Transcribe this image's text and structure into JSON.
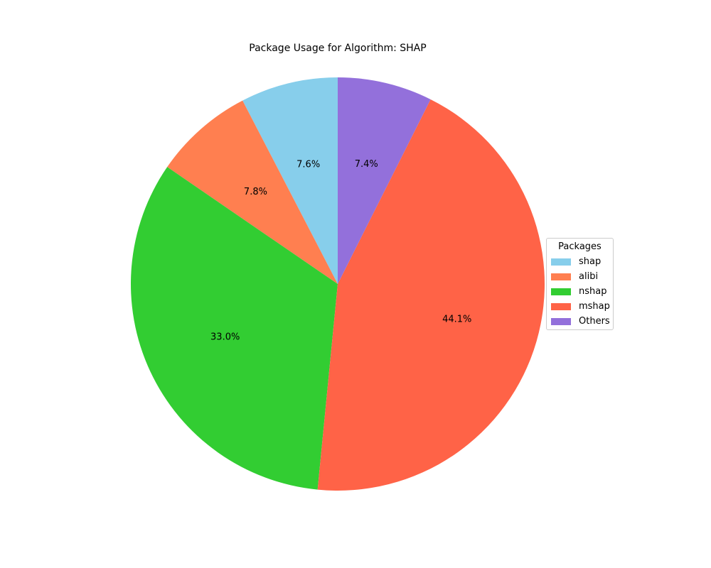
{
  "chart_data": {
    "type": "pie",
    "title": "Package Usage for Algorithm: SHAP",
    "slices": [
      {
        "label": "shap",
        "value": 7.6,
        "pct_label": "7.6%",
        "color": "#87CEEB"
      },
      {
        "label": "alibi",
        "value": 7.8,
        "pct_label": "7.8%",
        "color": "#FF7F50"
      },
      {
        "label": "nshap",
        "value": 33.0,
        "pct_label": "33.0%",
        "color": "#32CD32"
      },
      {
        "label": "mshap",
        "value": 44.1,
        "pct_label": "44.1%",
        "color": "#FF6347"
      },
      {
        "label": "Others",
        "value": 7.4,
        "pct_label": "7.4%",
        "color": "#9370DB"
      }
    ],
    "start_angle": 90,
    "direction": "counterclockwise",
    "legend": {
      "title": "Packages",
      "placement": "center-right"
    }
  }
}
